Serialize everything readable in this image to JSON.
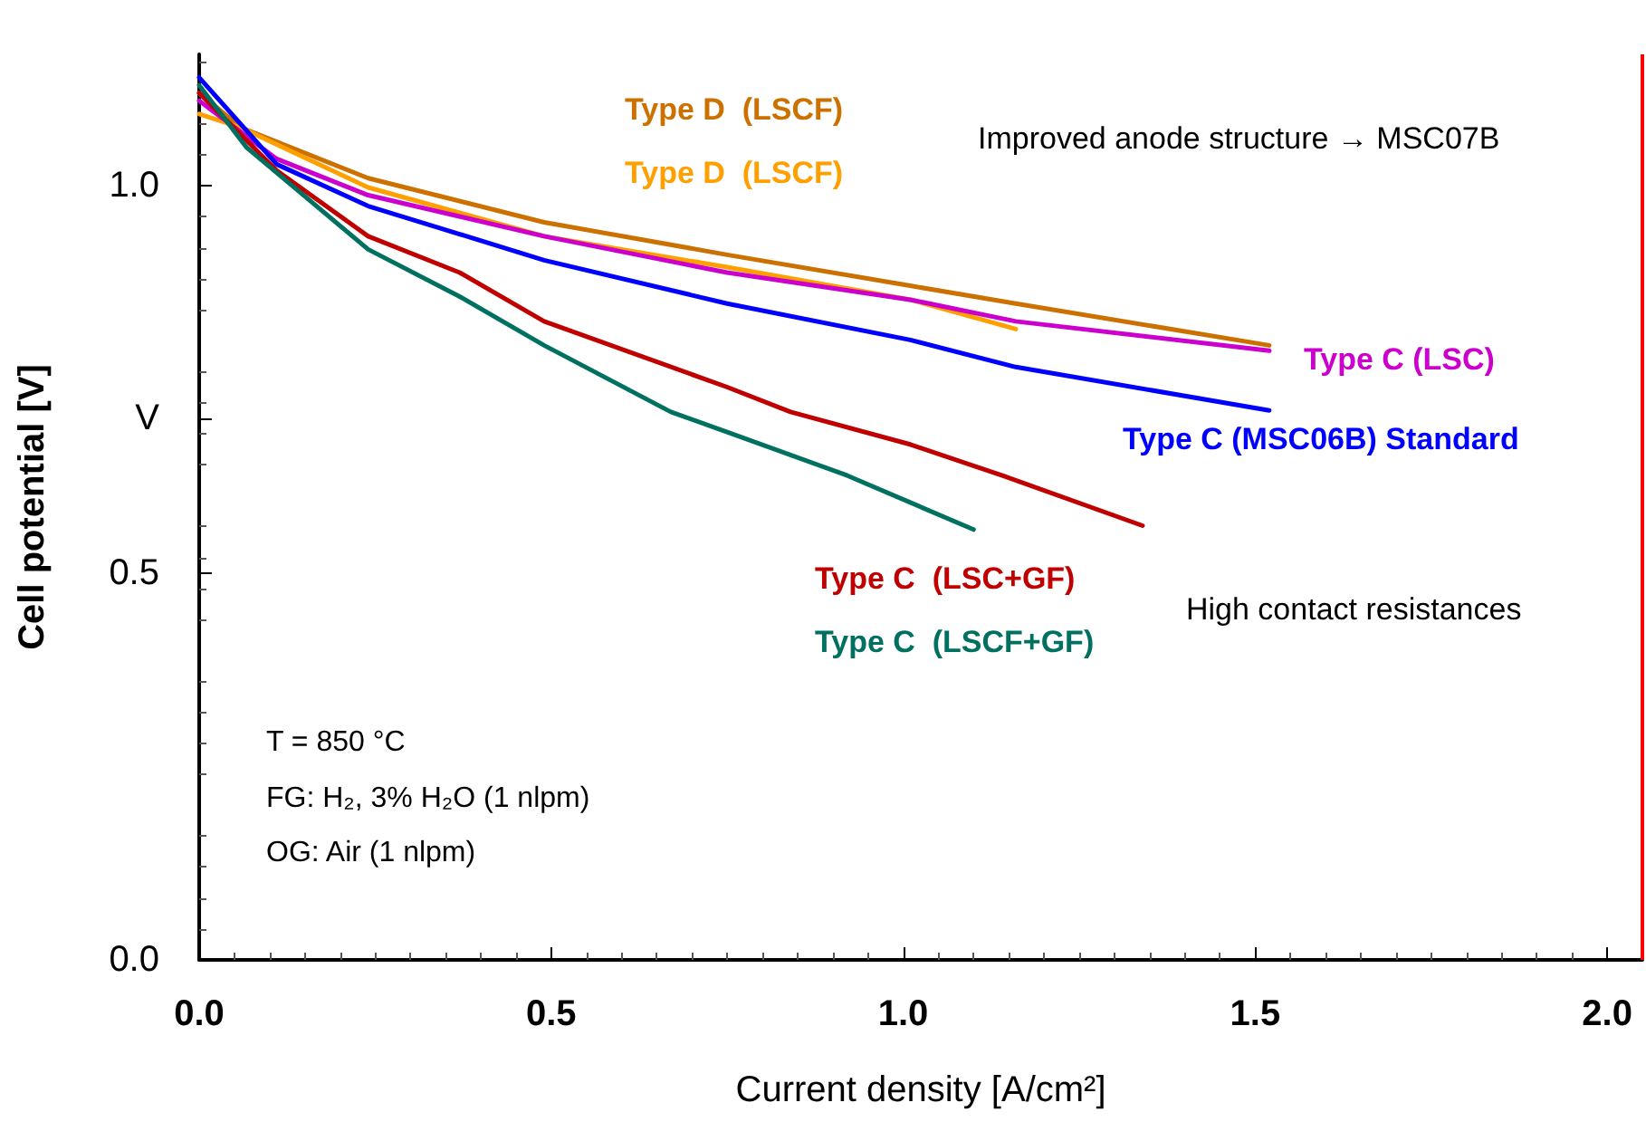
{
  "chart_data": {
    "type": "line",
    "xlabel": "Current density [A/cm²]",
    "ylabel": "Cell potential [V]",
    "xlim": [
      0,
      2.05
    ],
    "ylim": [
      0,
      1.17
    ],
    "xticks": [
      {
        "value": 0,
        "label": "0.0"
      },
      {
        "value": 0.5,
        "label": "0.5"
      },
      {
        "value": 1,
        "label": "1.0"
      },
      {
        "value": 1.5,
        "label": "1.5"
      },
      {
        "value": 2,
        "label": "2.0"
      }
    ],
    "yticks": [
      {
        "value": 0,
        "label": "0.0"
      },
      {
        "value": 0.5,
        "label": "0.5"
      },
      {
        "value": 0.7,
        "label": "V"
      },
      {
        "value": 1,
        "label": "1.0"
      }
    ],
    "grid": false,
    "legend": false,
    "marker": "none",
    "line_style": "solid",
    "series": [
      {
        "name": "Type D  (LSCF)",
        "color": "#cc7000",
        "x": [
          0,
          0.06,
          0.24,
          0.49,
          0.75,
          1.01,
          1.16,
          1.52
        ],
        "values": [
          1.12,
          1.075,
          1.01,
          0.953,
          0.911,
          0.871,
          0.848,
          0.794
        ]
      },
      {
        "name": "Type D  (LSCF)",
        "color": "#ffa000",
        "x": [
          0,
          0.06,
          0.24,
          0.49,
          0.75,
          1.01,
          1.16
        ],
        "values": [
          1.093,
          1.075,
          0.998,
          0.935,
          0.895,
          0.853,
          0.815
        ]
      },
      {
        "name": "Type C (LSC)",
        "color": "#cc00cc",
        "x": [
          0,
          0.11,
          0.24,
          0.49,
          0.75,
          1.01,
          1.16,
          1.52
        ],
        "values": [
          1.11,
          1.035,
          0.988,
          0.935,
          0.888,
          0.853,
          0.825,
          0.787
        ]
      },
      {
        "name": "Type C (MSC06B) Standard",
        "color": "#0000ff",
        "x": [
          0,
          0.11,
          0.24,
          0.49,
          0.75,
          1.01,
          1.16,
          1.52
        ],
        "values": [
          1.14,
          1.028,
          0.974,
          0.904,
          0.848,
          0.801,
          0.766,
          0.71
        ]
      },
      {
        "name": "Type C  (LSC+GF)",
        "color": "#c00000",
        "x": [
          0,
          0.11,
          0.24,
          0.37,
          0.49,
          0.75,
          0.84,
          1.01,
          1.14,
          1.34
        ],
        "values": [
          1.12,
          1.02,
          0.935,
          0.888,
          0.825,
          0.74,
          0.708,
          0.666,
          0.626,
          0.561
        ]
      },
      {
        "name": "Type C  (LSCF+GF)",
        "color": "#007060",
        "x": [
          0,
          0.067,
          0.24,
          0.37,
          0.49,
          0.67,
          0.75,
          0.92,
          1.1
        ],
        "values": [
          1.13,
          1.05,
          0.918,
          0.857,
          0.794,
          0.708,
          0.682,
          0.626,
          0.556
        ]
      }
    ],
    "ref_lines": [
      {
        "axis": "x",
        "value": 2.05,
        "color": "#ff0000"
      }
    ],
    "annotations": [
      "Improved anode structure → MSC07B",
      "High contact resistances",
      "T = 850 °C",
      "FG: H₂, 3% H₂O (1 nlpm)",
      "OG: Air (1 nlpm)"
    ]
  }
}
